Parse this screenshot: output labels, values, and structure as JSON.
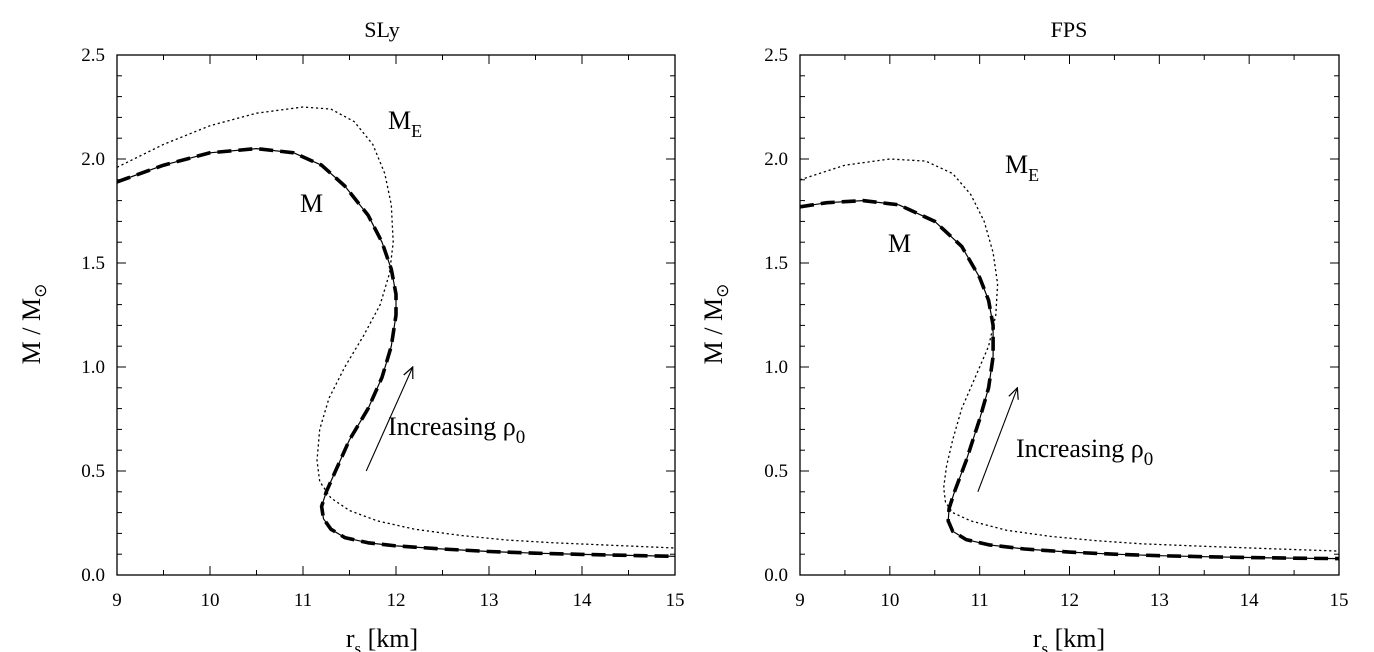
{
  "chart_data": [
    {
      "type": "line",
      "title": "SLy",
      "xlabel": "r",
      "xlabel_sub": "s",
      "xlabel_unit": " [km]",
      "ylabel": "M / M",
      "ylabel_sub": "⊙",
      "xlim": [
        9,
        15
      ],
      "ylim": [
        0,
        2.5
      ],
      "xticks": [
        9,
        10,
        11,
        12,
        13,
        14,
        15
      ],
      "yticks": [
        "0.0",
        "0.5",
        "1.0",
        "1.5",
        "2.0",
        "2.5"
      ],
      "annotations": {
        "me_label": "M",
        "me_sub": "E",
        "m_label": "M",
        "arrow_text": "Increasing ρ",
        "arrow_sub": "0"
      },
      "arrow": {
        "from": [
          11.68,
          0.5
        ],
        "to": [
          12.18,
          1.0
        ]
      },
      "series": [
        {
          "style": "solid",
          "x": [
            9.0,
            9.5,
            10.0,
            10.5,
            10.9,
            11.2,
            11.45,
            11.7,
            11.85,
            11.95,
            12.0,
            12.0,
            11.95,
            11.85,
            11.7,
            11.5,
            11.35,
            11.25,
            11.2,
            11.22,
            11.3,
            11.45,
            11.7,
            12.0,
            12.5,
            13.0,
            13.5,
            14.0,
            14.5,
            15.0
          ],
          "y": [
            1.89,
            1.97,
            2.03,
            2.05,
            2.03,
            1.97,
            1.87,
            1.73,
            1.6,
            1.47,
            1.35,
            1.25,
            1.1,
            0.95,
            0.8,
            0.65,
            0.5,
            0.4,
            0.33,
            0.27,
            0.22,
            0.18,
            0.155,
            0.14,
            0.125,
            0.113,
            0.105,
            0.099,
            0.094,
            0.09
          ]
        },
        {
          "style": "dashed",
          "x": [
            9.0,
            9.5,
            10.0,
            10.5,
            10.9,
            11.2,
            11.45,
            11.7,
            11.85,
            11.95,
            12.0,
            12.0,
            11.95,
            11.85,
            11.7,
            11.5,
            11.35,
            11.25,
            11.2,
            11.22,
            11.3,
            11.45,
            11.7,
            12.0,
            12.5,
            13.0,
            13.5,
            14.0,
            14.5,
            15.0
          ],
          "y": [
            1.89,
            1.97,
            2.03,
            2.05,
            2.03,
            1.97,
            1.87,
            1.73,
            1.6,
            1.47,
            1.35,
            1.25,
            1.1,
            0.95,
            0.8,
            0.65,
            0.5,
            0.4,
            0.33,
            0.27,
            0.22,
            0.18,
            0.155,
            0.14,
            0.125,
            0.113,
            0.105,
            0.099,
            0.094,
            0.09
          ]
        },
        {
          "style": "dotted",
          "x": [
            9.0,
            9.5,
            10.0,
            10.5,
            11.0,
            11.3,
            11.55,
            11.75,
            11.88,
            11.95,
            11.97,
            11.93,
            11.83,
            11.65,
            11.45,
            11.28,
            11.18,
            11.15,
            11.18,
            11.3,
            11.5,
            11.8,
            12.2,
            12.7,
            13.2,
            13.7,
            14.2,
            15.0
          ],
          "y": [
            1.96,
            2.07,
            2.16,
            2.22,
            2.25,
            2.24,
            2.18,
            2.07,
            1.93,
            1.78,
            1.6,
            1.45,
            1.3,
            1.15,
            1.0,
            0.85,
            0.7,
            0.55,
            0.45,
            0.37,
            0.31,
            0.26,
            0.22,
            0.19,
            0.168,
            0.155,
            0.145,
            0.13
          ]
        }
      ]
    },
    {
      "type": "line",
      "title": "FPS",
      "xlabel": "r",
      "xlabel_sub": "s",
      "xlabel_unit": " [km]",
      "ylabel": "M / M",
      "ylabel_sub": "⊙",
      "xlim": [
        9,
        15
      ],
      "ylim": [
        0,
        2.5
      ],
      "xticks": [
        9,
        10,
        11,
        12,
        13,
        14,
        15
      ],
      "yticks": [
        "0.0",
        "0.5",
        "1.0",
        "1.5",
        "2.0",
        "2.5"
      ],
      "annotations": {
        "me_label": "M",
        "me_sub": "E",
        "m_label": "M",
        "arrow_text": "Increasing ρ",
        "arrow_sub": "0"
      },
      "arrow": {
        "from": [
          10.98,
          0.4
        ],
        "to": [
          11.42,
          0.9
        ]
      },
      "series": [
        {
          "style": "solid",
          "x": [
            9.0,
            9.3,
            9.7,
            10.1,
            10.5,
            10.8,
            11.0,
            11.1,
            11.15,
            11.15,
            11.1,
            11.0,
            10.85,
            10.72,
            10.66,
            10.65,
            10.7,
            10.85,
            11.1,
            11.5,
            12.0,
            12.5,
            13.0,
            13.5,
            14.0,
            14.5,
            15.0
          ],
          "y": [
            1.77,
            1.79,
            1.8,
            1.78,
            1.7,
            1.58,
            1.43,
            1.32,
            1.2,
            1.05,
            0.9,
            0.75,
            0.55,
            0.4,
            0.32,
            0.26,
            0.21,
            0.17,
            0.145,
            0.125,
            0.11,
            0.1,
            0.093,
            0.088,
            0.084,
            0.081,
            0.079
          ]
        },
        {
          "style": "dashed",
          "x": [
            9.0,
            9.3,
            9.7,
            10.1,
            10.5,
            10.8,
            11.0,
            11.1,
            11.15,
            11.15,
            11.1,
            11.0,
            10.85,
            10.72,
            10.66,
            10.65,
            10.7,
            10.85,
            11.1,
            11.5,
            12.0,
            12.5,
            13.0,
            13.5,
            14.0,
            14.5,
            15.0
          ],
          "y": [
            1.77,
            1.79,
            1.8,
            1.78,
            1.7,
            1.58,
            1.43,
            1.32,
            1.2,
            1.05,
            0.9,
            0.75,
            0.55,
            0.4,
            0.32,
            0.26,
            0.21,
            0.17,
            0.145,
            0.125,
            0.11,
            0.1,
            0.093,
            0.088,
            0.084,
            0.081,
            0.079
          ]
        },
        {
          "style": "dotted",
          "x": [
            9.0,
            9.5,
            10.0,
            10.4,
            10.7,
            10.9,
            11.05,
            11.15,
            11.2,
            11.18,
            11.1,
            10.95,
            10.8,
            10.7,
            10.63,
            10.6,
            10.62,
            10.7,
            10.9,
            11.3,
            11.8,
            12.3,
            12.8,
            13.5,
            14.2,
            15.0
          ],
          "y": [
            1.9,
            1.97,
            2.0,
            1.99,
            1.93,
            1.83,
            1.7,
            1.55,
            1.4,
            1.25,
            1.1,
            0.95,
            0.8,
            0.65,
            0.52,
            0.42,
            0.35,
            0.3,
            0.26,
            0.215,
            0.185,
            0.165,
            0.15,
            0.138,
            0.127,
            0.115
          ]
        }
      ]
    }
  ]
}
